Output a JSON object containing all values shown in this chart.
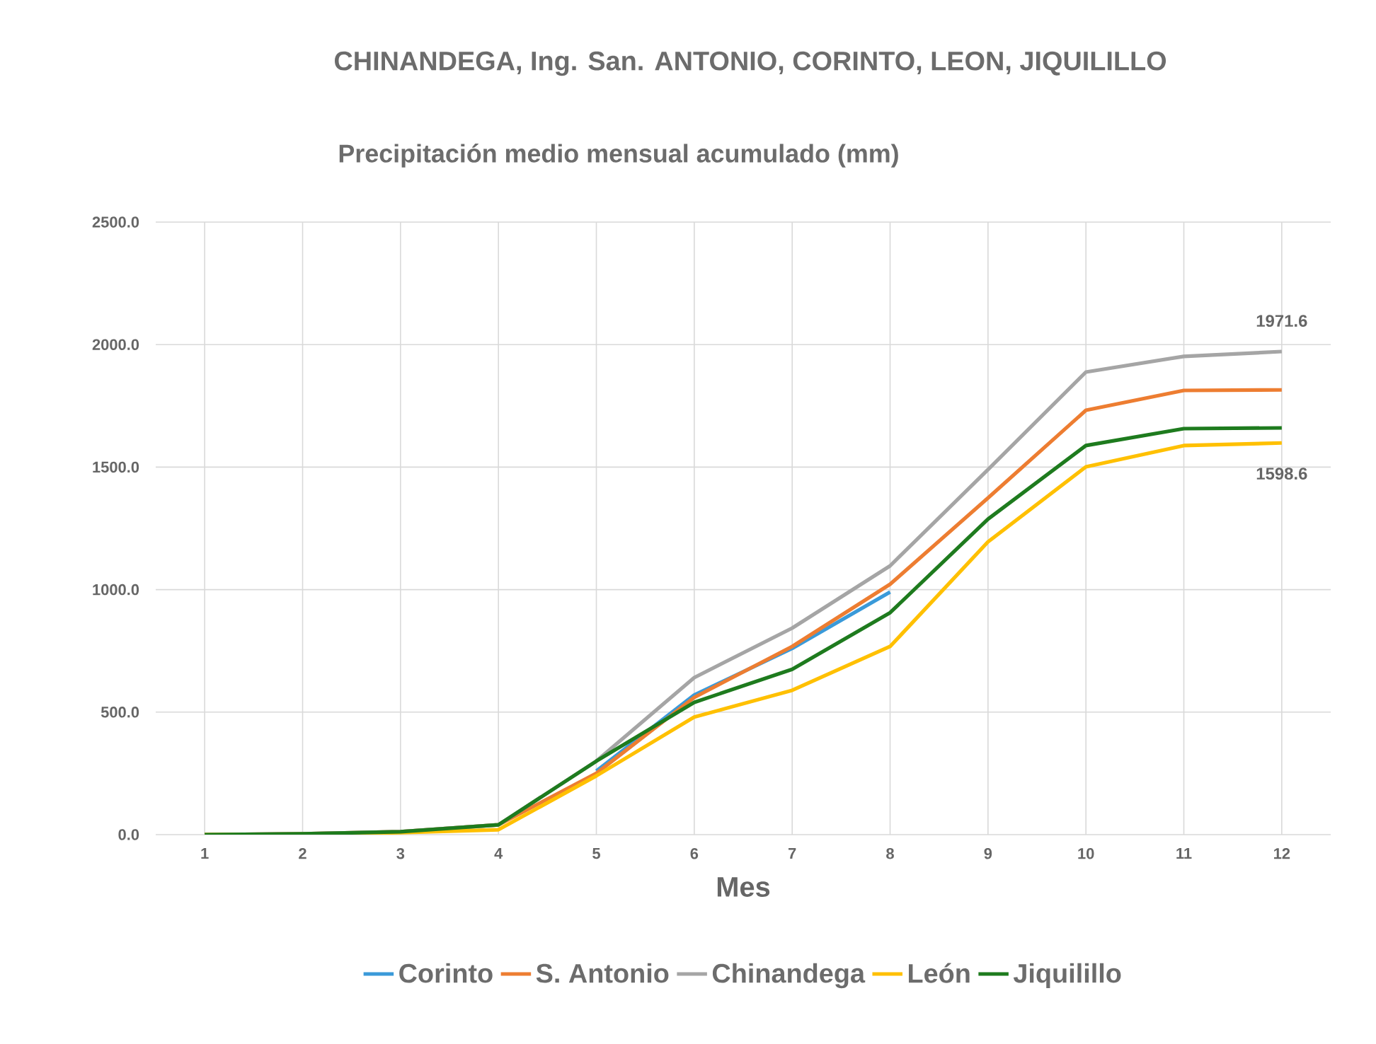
{
  "chart_data": {
    "type": "line",
    "title": "CHINANDEGA, Ing. San. ANTONIO, CORINTO, LEON,    JIQUILILLO",
    "subtitle": "Precipitación medio mensual acumulado (mm)",
    "xlabel": "Mes",
    "categories": [
      "1",
      "2",
      "3",
      "4",
      "5",
      "6",
      "7",
      "8",
      "9",
      "10",
      "11",
      "12"
    ],
    "series": [
      {
        "name": "Corinto",
        "color": "#3a9ad9",
        "values": [
          null,
          null,
          null,
          null,
          260,
          570,
          760,
          990,
          null,
          null,
          null,
          null
        ]
      },
      {
        "name": "S. Antonio",
        "color": "#ed7d31",
        "values": [
          0,
          3,
          12,
          40,
          250,
          560,
          768,
          1022,
          1374,
          1732,
          1813,
          1815
        ]
      },
      {
        "name": "Chinandega",
        "color": "#a5a5a5",
        "values": [
          0,
          3,
          12,
          40,
          300,
          641,
          843,
          1097,
          1490,
          1888,
          1952,
          1971.6
        ],
        "value_labels": [
          null,
          null,
          null,
          null,
          null,
          null,
          null,
          null,
          null,
          null,
          null,
          "1971.6"
        ]
      },
      {
        "name": "León",
        "color": "#ffc000",
        "values": [
          0,
          2,
          8,
          20,
          240,
          480,
          589,
          768,
          1195,
          1501,
          1588,
          1598.6
        ],
        "value_labels": [
          null,
          null,
          null,
          null,
          null,
          null,
          null,
          null,
          null,
          null,
          null,
          "1598.6"
        ]
      },
      {
        "name": "Jiquilillo",
        "color": "#1e7b1e",
        "values": [
          0,
          3,
          12,
          40,
          300,
          540,
          675,
          906,
          1288,
          1588,
          1657,
          1660
        ]
      }
    ],
    "ylim": [
      0,
      2500
    ],
    "yticks": [
      {
        "value": 0,
        "label": "0.0"
      },
      {
        "value": 500,
        "label": "500.0"
      },
      {
        "value": 1000,
        "label": "1000.0"
      },
      {
        "value": 1500,
        "label": "1500.0"
      },
      {
        "value": 2000,
        "label": "2000.0"
      },
      {
        "value": 2500,
        "label": "2500.0"
      }
    ],
    "grid": true,
    "legend": "bottom",
    "marker": "none",
    "line_style": "solid"
  }
}
